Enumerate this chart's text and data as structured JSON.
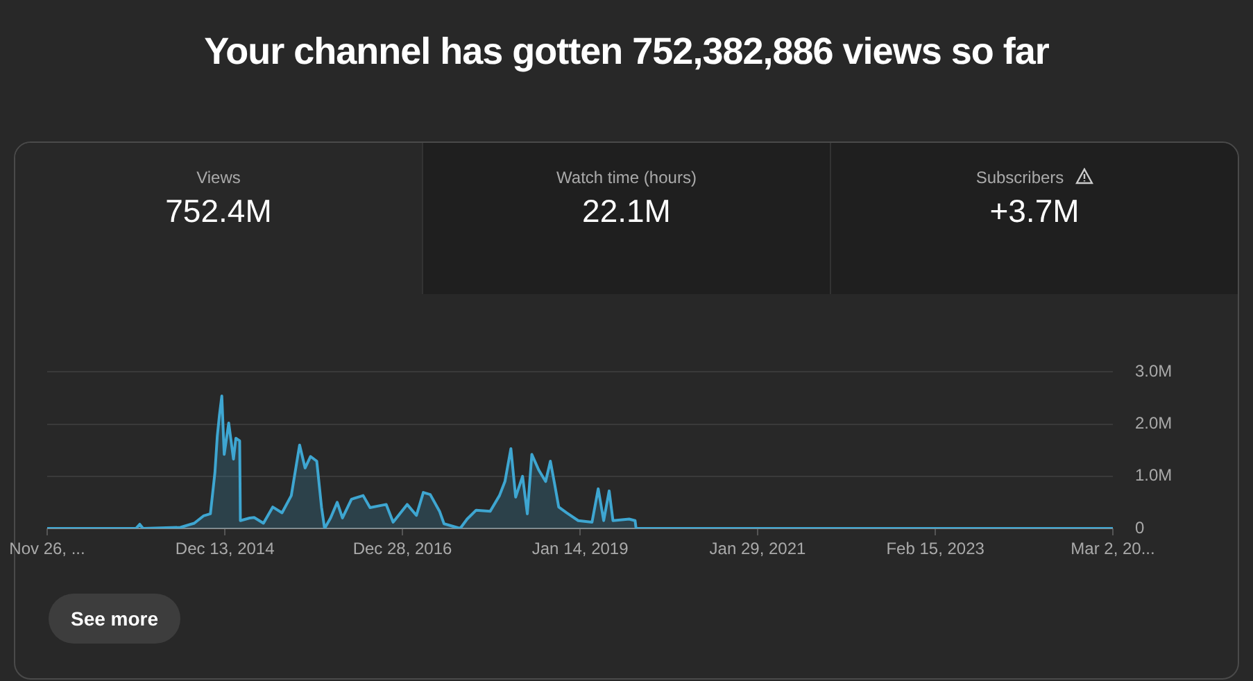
{
  "chart_data": {
    "type": "area",
    "title": "Your channel has gotten 752,382,886 views so far",
    "annotations": [
      "Views",
      "752.4M",
      "Watch time (hours)",
      "22.1M",
      "Subscribers",
      "+3.7M",
      "See more"
    ],
    "x": [
      "2012-11-26",
      "2013-12-04",
      "2013-12-20",
      "2014-01-03",
      "2014-06-09",
      "2014-08-06",
      "2014-09-14",
      "2014-10-13",
      "2014-11-01",
      "2014-11-11",
      "2014-11-20",
      "2014-11-30",
      "2014-12-10",
      "2014-12-29",
      "2015-01-18",
      "2015-01-28",
      "2015-02-13",
      "2015-02-16",
      "2015-03-27",
      "2015-04-15",
      "2015-05-24",
      "2015-07-02",
      "2015-08-10",
      "2015-09-18",
      "2015-10-23",
      "2015-11-15",
      "2015-12-08",
      "2016-01-03",
      "2016-01-23",
      "2016-02-05",
      "2016-03-01",
      "2016-03-29",
      "2016-04-20",
      "2016-05-28",
      "2016-07-16",
      "2016-08-14",
      "2016-10-21",
      "2016-11-19",
      "2017-01-17",
      "2017-02-25",
      "2017-03-26",
      "2017-04-24",
      "2017-06-02",
      "2017-06-21",
      "2017-08-28",
      "2017-09-26",
      "2017-11-03",
      "2018-01-01",
      "2018-02-09",
      "2018-03-04",
      "2018-03-29",
      "2018-04-18",
      "2018-05-17",
      "2018-06-06",
      "2018-06-25",
      "2018-07-24",
      "2018-08-22",
      "2018-09-11",
      "2018-09-30",
      "2018-10-16",
      "2018-11-18",
      "2019-01-06",
      "2019-03-05",
      "2019-03-31",
      "2019-04-23",
      "2019-05-16",
      "2019-06-01",
      "2019-08-08",
      "2019-09-02",
      "2019-09-06",
      "2025-03-02"
    ],
    "series": [
      {
        "color": "#3ea6d1",
        "values": [
          0,
          0,
          80000,
          0,
          20000,
          100000,
          240000,
          280000,
          1070000,
          1770000,
          2170000,
          2540000,
          1420000,
          2020000,
          1330000,
          1730000,
          1680000,
          150000,
          200000,
          210000,
          100000,
          410000,
          300000,
          630000,
          1600000,
          1160000,
          1380000,
          1290000,
          410000,
          0,
          200000,
          500000,
          200000,
          560000,
          630000,
          400000,
          460000,
          120000,
          460000,
          250000,
          690000,
          650000,
          330000,
          90000,
          0,
          180000,
          350000,
          330000,
          630000,
          900000,
          1530000,
          600000,
          1000000,
          280000,
          1420000,
          1120000,
          900000,
          1290000,
          820000,
          410000,
          300000,
          150000,
          120000,
          760000,
          150000,
          720000,
          150000,
          180000,
          150000,
          0,
          0
        ]
      }
    ],
    "xlim": [
      "2012-11-26",
      "2025-03-02"
    ],
    "xticks": [
      {
        "value": "2012-11-26",
        "label": "Nov 26, ..."
      },
      {
        "value": "2014-12-13",
        "label": "Dec 13, 2014"
      },
      {
        "value": "2016-12-28",
        "label": "Dec 28, 2016"
      },
      {
        "value": "2019-01-14",
        "label": "Jan 14, 2019"
      },
      {
        "value": "2021-01-29",
        "label": "Jan 29, 2021"
      },
      {
        "value": "2023-02-15",
        "label": "Feb 15, 2023"
      },
      {
        "value": "2025-03-02",
        "label": "Mar 2, 20..."
      }
    ],
    "ylim": [
      0,
      3000000
    ],
    "yticks": [
      0,
      {
        "value": 1000000,
        "label": "1.0M"
      },
      {
        "value": 2000000,
        "label": "2.0M"
      },
      {
        "value": 3000000,
        "label": "3.0M"
      }
    ],
    "grid": "y",
    "legend": false,
    "marker": "none",
    "line_style": "solid"
  }
}
